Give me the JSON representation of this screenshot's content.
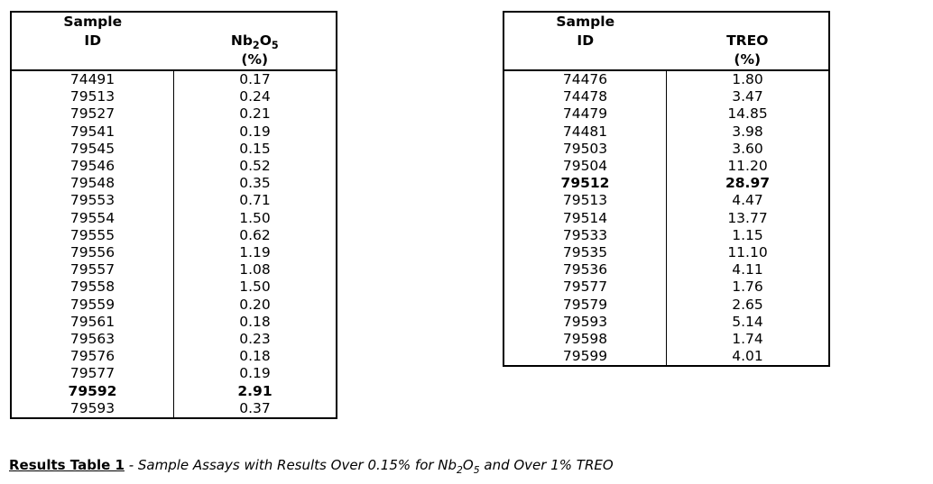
{
  "page": {
    "background_color": "#ffffff",
    "text_color": "#000000",
    "border_color": "#000000"
  },
  "tables": [
    {
      "name": "nb2o5-assay-table",
      "header": {
        "col1_line1": "Sample",
        "col1_line2": "ID",
        "col2_line2_formula": "Nb_2O_5",
        "col2_line3": "(%)"
      },
      "rows": [
        {
          "id": "74491",
          "value": "0.17",
          "bold": false
        },
        {
          "id": "79513",
          "value": "0.24",
          "bold": false
        },
        {
          "id": "79527",
          "value": "0.21",
          "bold": false
        },
        {
          "id": "79541",
          "value": "0.19",
          "bold": false
        },
        {
          "id": "79545",
          "value": "0.15",
          "bold": false
        },
        {
          "id": "79546",
          "value": "0.52",
          "bold": false
        },
        {
          "id": "79548",
          "value": "0.35",
          "bold": false
        },
        {
          "id": "79553",
          "value": "0.71",
          "bold": false
        },
        {
          "id": "79554",
          "value": "1.50",
          "bold": false
        },
        {
          "id": "79555",
          "value": "0.62",
          "bold": false
        },
        {
          "id": "79556",
          "value": "1.19",
          "bold": false
        },
        {
          "id": "79557",
          "value": "1.08",
          "bold": false
        },
        {
          "id": "79558",
          "value": "1.50",
          "bold": false
        },
        {
          "id": "79559",
          "value": "0.20",
          "bold": false
        },
        {
          "id": "79561",
          "value": "0.18",
          "bold": false
        },
        {
          "id": "79563",
          "value": "0.23",
          "bold": false
        },
        {
          "id": "79576",
          "value": "0.18",
          "bold": false
        },
        {
          "id": "79577",
          "value": "0.19",
          "bold": false
        },
        {
          "id": "79592",
          "value": "2.91",
          "bold": true
        },
        {
          "id": "79593",
          "value": "0.37",
          "bold": false
        }
      ]
    },
    {
      "name": "treo-assay-table",
      "header": {
        "col1_line1": "Sample",
        "col1_line2": "ID",
        "col2_line2_formula": "TREO",
        "col2_line3": "(%)"
      },
      "rows": [
        {
          "id": "74476",
          "value": "1.80",
          "bold": false
        },
        {
          "id": "74478",
          "value": "3.47",
          "bold": false
        },
        {
          "id": "74479",
          "value": "14.85",
          "bold": false
        },
        {
          "id": "74481",
          "value": "3.98",
          "bold": false
        },
        {
          "id": "79503",
          "value": "3.60",
          "bold": false
        },
        {
          "id": "79504",
          "value": "11.20",
          "bold": false
        },
        {
          "id": "79512",
          "value": "28.97",
          "bold": true
        },
        {
          "id": "79513",
          "value": "4.47",
          "bold": false
        },
        {
          "id": "79514",
          "value": "13.77",
          "bold": false
        },
        {
          "id": "79533",
          "value": "1.15",
          "bold": false
        },
        {
          "id": "79535",
          "value": "11.10",
          "bold": false
        },
        {
          "id": "79536",
          "value": "4.11",
          "bold": false
        },
        {
          "id": "79577",
          "value": "1.76",
          "bold": false
        },
        {
          "id": "79579",
          "value": "2.65",
          "bold": false
        },
        {
          "id": "79593",
          "value": "5.14",
          "bold": false
        },
        {
          "id": "79598",
          "value": "1.74",
          "bold": false
        },
        {
          "id": "79599",
          "value": "4.01",
          "bold": false
        }
      ]
    }
  ],
  "caption": {
    "label": "Results Table 1",
    "separator": " - ",
    "text_formula": "Sample Assays with Results Over 0.15% for Nb_2O_5 and Over 1% TREO"
  }
}
